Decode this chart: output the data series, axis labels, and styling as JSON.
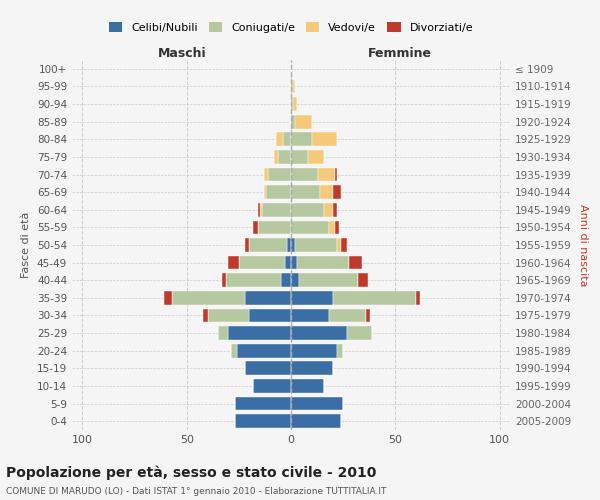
{
  "age_groups": [
    "0-4",
    "5-9",
    "10-14",
    "15-19",
    "20-24",
    "25-29",
    "30-34",
    "35-39",
    "40-44",
    "45-49",
    "50-54",
    "55-59",
    "60-64",
    "65-69",
    "70-74",
    "75-79",
    "80-84",
    "85-89",
    "90-94",
    "95-99",
    "100+"
  ],
  "birth_years": [
    "2005-2009",
    "2000-2004",
    "1995-1999",
    "1990-1994",
    "1985-1989",
    "1980-1984",
    "1975-1979",
    "1970-1974",
    "1965-1969",
    "1960-1964",
    "1955-1959",
    "1950-1954",
    "1945-1949",
    "1940-1944",
    "1935-1939",
    "1930-1934",
    "1925-1929",
    "1920-1924",
    "1915-1919",
    "1910-1914",
    "≤ 1909"
  ],
  "male": {
    "celibi": [
      27,
      27,
      18,
      22,
      26,
      30,
      20,
      22,
      5,
      3,
      2,
      0,
      0,
      0,
      0,
      0,
      0,
      0,
      0,
      0,
      0
    ],
    "coniugati": [
      0,
      0,
      0,
      0,
      3,
      5,
      20,
      35,
      26,
      22,
      18,
      16,
      14,
      12,
      11,
      6,
      4,
      0,
      0,
      0,
      0
    ],
    "vedovi": [
      0,
      0,
      0,
      0,
      0,
      0,
      0,
      0,
      0,
      0,
      0,
      0,
      1,
      1,
      2,
      2,
      3,
      0,
      0,
      0,
      0
    ],
    "divorziati": [
      0,
      0,
      0,
      0,
      0,
      0,
      2,
      4,
      2,
      5,
      2,
      2,
      1,
      0,
      0,
      0,
      0,
      0,
      0,
      0,
      0
    ]
  },
  "female": {
    "nubili": [
      24,
      25,
      16,
      20,
      22,
      27,
      18,
      20,
      4,
      3,
      2,
      0,
      0,
      0,
      0,
      0,
      0,
      0,
      0,
      0,
      0
    ],
    "coniugate": [
      0,
      0,
      0,
      0,
      3,
      12,
      18,
      40,
      28,
      25,
      20,
      18,
      16,
      14,
      13,
      8,
      10,
      2,
      1,
      1,
      0
    ],
    "vedove": [
      0,
      0,
      0,
      0,
      0,
      0,
      0,
      0,
      0,
      0,
      2,
      3,
      4,
      6,
      8,
      8,
      12,
      8,
      2,
      1,
      0
    ],
    "divorziate": [
      0,
      0,
      0,
      0,
      0,
      0,
      2,
      2,
      5,
      6,
      3,
      2,
      2,
      4,
      1,
      0,
      0,
      0,
      0,
      0,
      0
    ]
  },
  "colors": {
    "celibi": "#3a6ea5",
    "coniugati": "#b5c8a0",
    "vedovi": "#f5c97a",
    "divorziati": "#c0392b"
  },
  "xlim": 105,
  "title": "Popolazione per età, sesso e stato civile - 2010",
  "subtitle": "COMUNE DI MARUDO (LO) - Dati ISTAT 1° gennaio 2010 - Elaborazione TUTTITALIA.IT",
  "ylabel_left": "Fasce di età",
  "ylabel_right": "Anni di nascita",
  "xlabel_left": "Maschi",
  "xlabel_right": "Femmine",
  "bg_color": "#f5f5f5",
  "grid_color": "#cccccc"
}
